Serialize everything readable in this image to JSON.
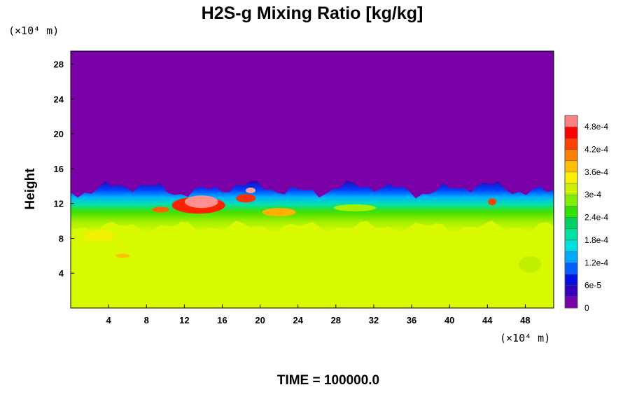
{
  "chart_data": {
    "type": "heatmap",
    "title": "H2S-g Mixing Ratio [kg/kg]",
    "xlabel": "",
    "ylabel": "Height",
    "x_unit_label": "(×10⁴ m)",
    "y_unit_label": "(×10⁴ m)",
    "xlim": [
      0,
      51
    ],
    "ylim": [
      0,
      29.5
    ],
    "x_ticks": [
      4,
      8,
      12,
      16,
      20,
      24,
      28,
      32,
      36,
      40,
      44,
      48
    ],
    "y_ticks": [
      4,
      8,
      12,
      16,
      20,
      24,
      28
    ],
    "x_tick_labels": [
      "4",
      "8",
      "12",
      "16",
      "20",
      "24",
      "28",
      "32",
      "36",
      "40",
      "44",
      "48"
    ],
    "y_tick_labels": [
      "4",
      "8",
      "12",
      "16",
      "20",
      "24",
      "28"
    ],
    "colorbar": {
      "min": 0,
      "max": 0.00051,
      "tick_values": [
        0,
        6e-05,
        0.00012,
        0.00018,
        0.00024,
        0.0003,
        0.00036,
        0.00042,
        0.00048
      ],
      "tick_labels": [
        "0",
        "6e-5",
        "1.2e-4",
        "1.8e-4",
        "2.4e-4",
        "3e-4",
        "3.6e-4",
        "4.2e-4",
        "4.8e-4"
      ],
      "colors": [
        "#7a00a8",
        "#3500b8",
        "#0010e0",
        "#0060ff",
        "#00a8ff",
        "#00e0e0",
        "#00e0a0",
        "#00d060",
        "#30e000",
        "#80ee00",
        "#ccf000",
        "#f8f000",
        "#ffc000",
        "#ff8000",
        "#ff4000",
        "#ff0000",
        "#ff8080"
      ]
    },
    "layers": {
      "lower_layer_value": 0.00033,
      "upper_layer_value": 0,
      "cloud_top_height_approx": 14
    },
    "footer_text": "TIME = 100000.0"
  }
}
